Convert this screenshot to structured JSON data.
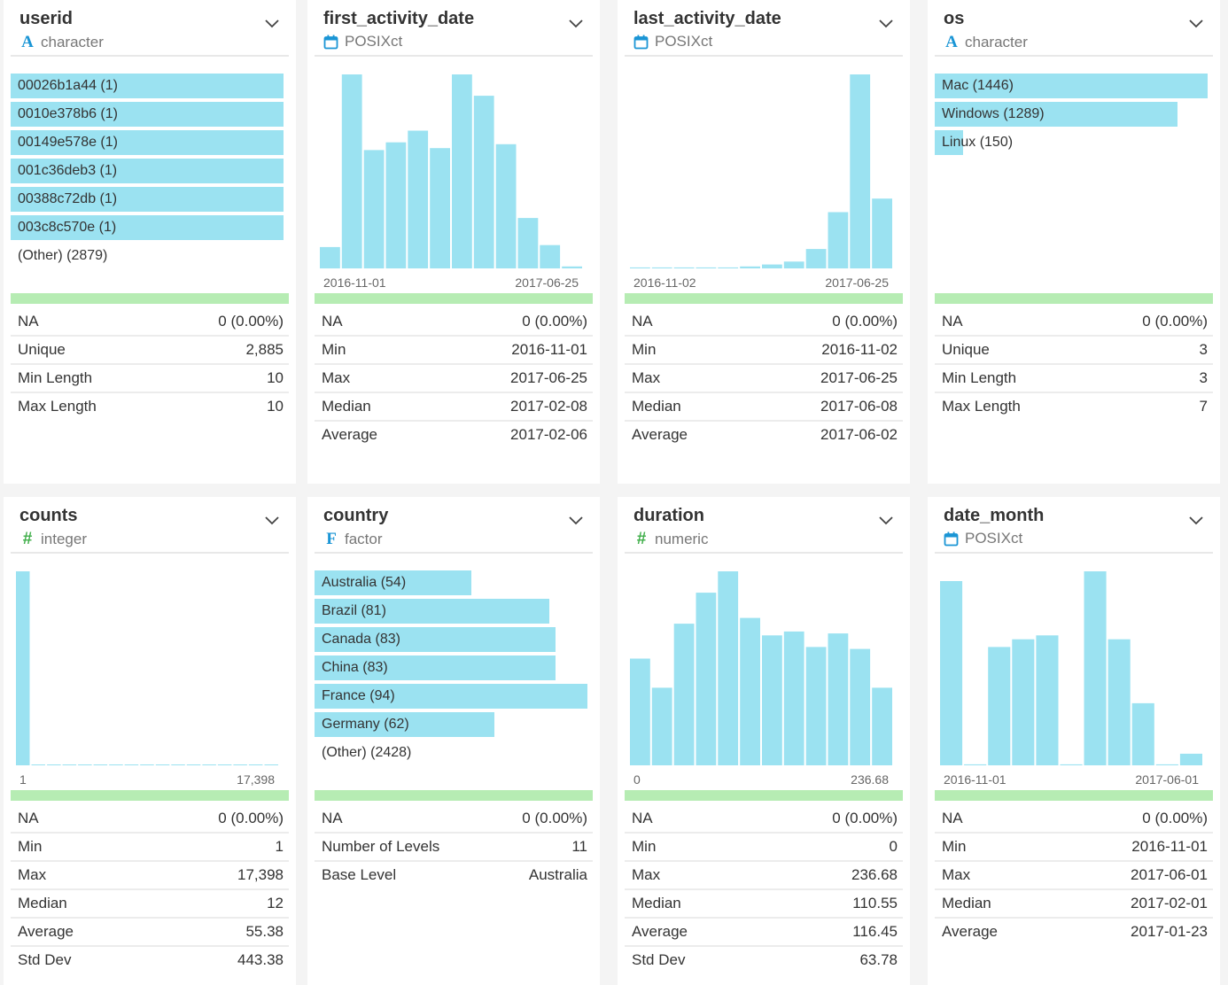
{
  "colors": {
    "bar": "#9be2f1",
    "valid": "#b6ecb3",
    "char_icon": "#1a95d5",
    "num_icon": "#3fae49"
  },
  "cards": [
    {
      "name": "userid",
      "type": "character",
      "icon": "char-icon",
      "levels": [
        {
          "label": "00026b1a44 (1)",
          "frac": 1.0
        },
        {
          "label": "0010e378b6 (1)",
          "frac": 1.0
        },
        {
          "label": "00149e578e (1)",
          "frac": 1.0
        },
        {
          "label": "001c36deb3 (1)",
          "frac": 1.0
        },
        {
          "label": "00388c72db (1)",
          "frac": 1.0
        },
        {
          "label": "003c8c570e (1)",
          "frac": 1.0
        }
      ],
      "other": "(Other) (2879)",
      "stats": [
        [
          "NA",
          "0 (0.00%)"
        ],
        [
          "Unique",
          "2,885"
        ],
        [
          "Min Length",
          "10"
        ],
        [
          "Max Length",
          "10"
        ]
      ]
    },
    {
      "name": "first_activity_date",
      "type": "POSIXct",
      "icon": "calendar-icon",
      "hist": [
        0.11,
        1.0,
        0.61,
        0.65,
        0.71,
        0.62,
        1.0,
        0.89,
        0.64,
        0.26,
        0.12,
        0.01
      ],
      "axis_min": "2016-11-01",
      "axis_max": "2017-06-25",
      "stats": [
        [
          "NA",
          "0 (0.00%)"
        ],
        [
          "Min",
          "2016-11-01"
        ],
        [
          "Max",
          "2017-06-25"
        ],
        [
          "Median",
          "2017-02-08"
        ],
        [
          "Average",
          "2017-02-06"
        ]
      ]
    },
    {
      "name": "last_activity_date",
      "type": "POSIXct",
      "icon": "calendar-icon",
      "hist": [
        0.005,
        0.005,
        0.005,
        0.005,
        0.005,
        0.01,
        0.02,
        0.035,
        0.1,
        0.29,
        1.0,
        0.36
      ],
      "axis_min": "2016-11-02",
      "axis_max": "2017-06-25",
      "stats": [
        [
          "NA",
          "0 (0.00%)"
        ],
        [
          "Min",
          "2016-11-02"
        ],
        [
          "Max",
          "2017-06-25"
        ],
        [
          "Median",
          "2017-06-08"
        ],
        [
          "Average",
          "2017-06-02"
        ]
      ]
    },
    {
      "name": "os",
      "type": "character",
      "icon": "char-icon",
      "levels": [
        {
          "label": "Mac (1446)",
          "frac": 1.0
        },
        {
          "label": "Windows (1289)",
          "frac": 0.891
        },
        {
          "label": "Linux (150)",
          "frac": 0.104
        }
      ],
      "other": "",
      "stats": [
        [
          "NA",
          "0 (0.00%)"
        ],
        [
          "Unique",
          "3"
        ],
        [
          "Min Length",
          "3"
        ],
        [
          "Max Length",
          "7"
        ]
      ]
    },
    {
      "name": "counts",
      "type": "integer",
      "icon": "hash-icon",
      "hist": [
        1.0,
        0.004,
        0.004,
        0.004,
        0.004,
        0.004,
        0.004,
        0.004,
        0.004,
        0.004,
        0.004,
        0.004,
        0.004,
        0.004,
        0.004,
        0.004,
        0.004
      ],
      "axis_min": "1",
      "axis_max": "17,398",
      "stats": [
        [
          "NA",
          "0 (0.00%)"
        ],
        [
          "Min",
          "1"
        ],
        [
          "Max",
          "17,398"
        ],
        [
          "Median",
          "12"
        ],
        [
          "Average",
          "55.38"
        ],
        [
          "Std Dev",
          "443.38"
        ]
      ]
    },
    {
      "name": "country",
      "type": "factor",
      "icon": "factor-icon",
      "levels": [
        {
          "label": "Australia (54)",
          "frac": 0.574
        },
        {
          "label": "Brazil (81)",
          "frac": 0.862
        },
        {
          "label": "Canada (83)",
          "frac": 0.883
        },
        {
          "label": "China (83)",
          "frac": 0.883
        },
        {
          "label": "France (94)",
          "frac": 1.0
        },
        {
          "label": "Germany (62)",
          "frac": 0.66
        }
      ],
      "other": "(Other) (2428)",
      "stats": [
        [
          "NA",
          "0 (0.00%)"
        ],
        [
          "Number of Levels",
          "11"
        ],
        [
          "Base Level",
          "Australia"
        ]
      ]
    },
    {
      "name": "duration",
      "type": "numeric",
      "icon": "hash-icon",
      "hist": [
        0.55,
        0.4,
        0.73,
        0.89,
        1.0,
        0.76,
        0.67,
        0.69,
        0.61,
        0.68,
        0.6,
        0.4
      ],
      "axis_min": "0",
      "axis_max": "236.68",
      "stats": [
        [
          "NA",
          "0 (0.00%)"
        ],
        [
          "Min",
          "0"
        ],
        [
          "Max",
          "236.68"
        ],
        [
          "Median",
          "110.55"
        ],
        [
          "Average",
          "116.45"
        ],
        [
          "Std Dev",
          "63.78"
        ]
      ]
    },
    {
      "name": "date_month",
      "type": "POSIXct",
      "icon": "calendar-icon",
      "hist": [
        0.95,
        0.005,
        0.61,
        0.65,
        0.67,
        0.005,
        1.0,
        0.65,
        0.32,
        0.005,
        0.06
      ],
      "axis_min": "2016-11-01",
      "axis_max": "2017-06-01",
      "stats": [
        [
          "NA",
          "0 (0.00%)"
        ],
        [
          "Min",
          "2016-11-01"
        ],
        [
          "Max",
          "2017-06-01"
        ],
        [
          "Median",
          "2017-02-01"
        ],
        [
          "Average",
          "2017-01-23"
        ]
      ]
    }
  ]
}
